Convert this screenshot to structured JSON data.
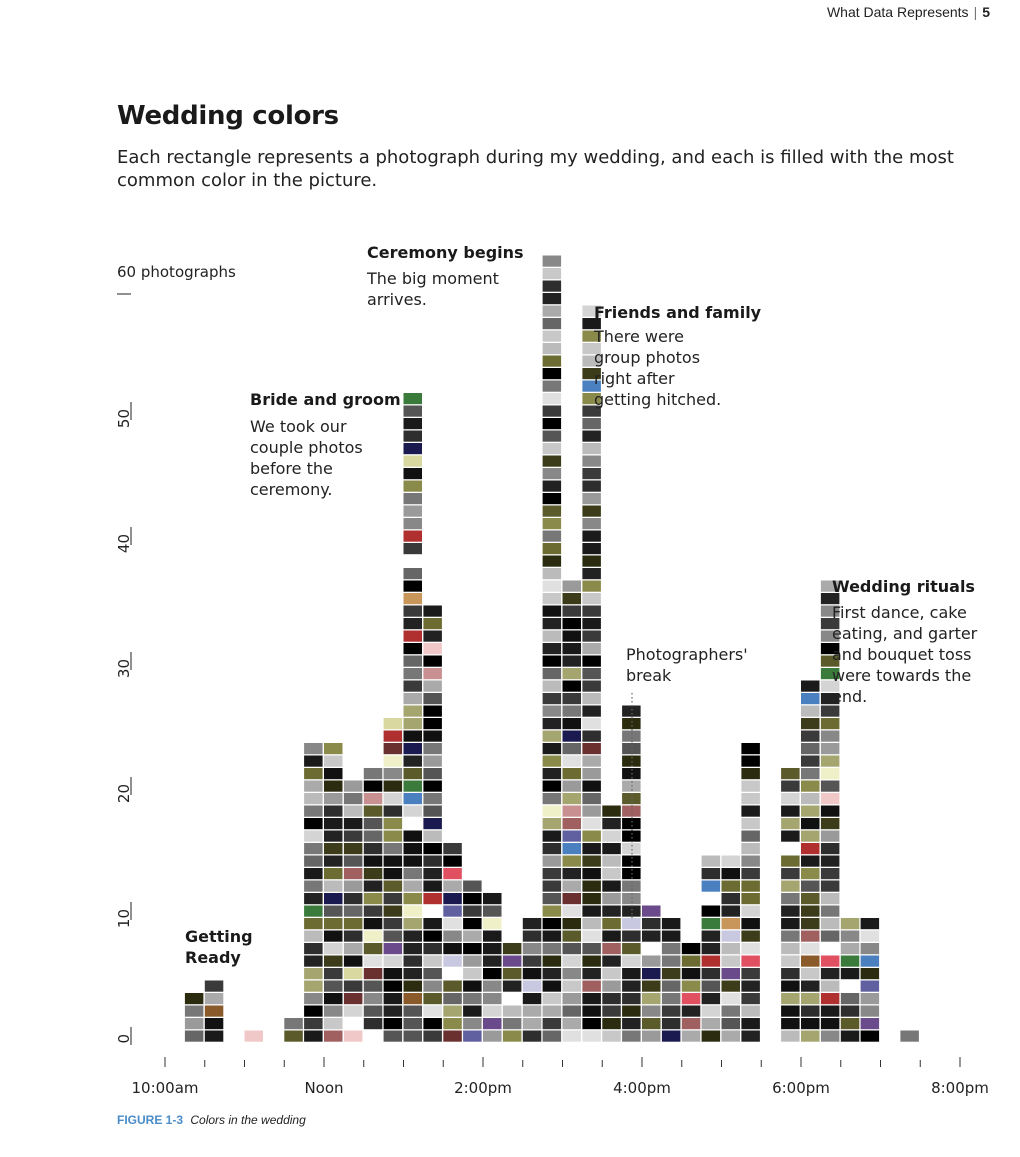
{
  "running_head": {
    "text": "What Data Represents",
    "page": "5"
  },
  "figure": {
    "title": "Wedding colors",
    "subtitle": "Each rectangle represents a photograph during my wedding, and each is filled with the most common color in the picture.",
    "caption_label": "FIGURE 1-3",
    "caption_text": "Colors in the wedding"
  },
  "annotations": {
    "getting_ready": {
      "title": "Getting\nReady"
    },
    "bride_groom": {
      "title": "Bride and groom",
      "text": "We took our\ncouple photos\nbefore the\nceremony."
    },
    "ceremony": {
      "title": "Ceremony begins",
      "text": "The big moment\narrives."
    },
    "friends": {
      "title": "Friends and family",
      "text": "There were\ngroup photos\nright after\ngetting hitched."
    },
    "break": {
      "text": "Photographers'\nbreak"
    },
    "rituals": {
      "title": "Wedding rituals",
      "text": "First dance, cake\neating, and garter\nand bouquet toss\nwere towards the\nend."
    }
  },
  "chart_data": {
    "type": "bar",
    "title": "Wedding colors",
    "xlabel": "",
    "ylabel": "photographs",
    "ylim": [
      0,
      60
    ],
    "yticks": [
      0,
      10,
      20,
      30,
      40,
      50,
      60
    ],
    "ytick_labels": [
      "0",
      "10",
      "20",
      "30",
      "40",
      "50",
      "60 photographs"
    ],
    "xlim_hours": [
      10,
      20
    ],
    "x_tick_labels": [
      {
        "hour": 10,
        "label": "10:00am"
      },
      {
        "hour": 12,
        "label": "Noon"
      },
      {
        "hour": 14,
        "label": "2:00pm"
      },
      {
        "hour": 16,
        "label": "4:00pm"
      },
      {
        "hour": 18,
        "label": "6:00pm"
      },
      {
        "hour": 20,
        "label": "8:00pm"
      }
    ],
    "bin_minutes": 15,
    "bins": [
      {
        "start": "10:15",
        "count": 4
      },
      {
        "start": "10:30",
        "count": 5
      },
      {
        "start": "11:00",
        "count": 1
      },
      {
        "start": "11:30",
        "count": 2
      },
      {
        "start": "11:45",
        "count": 24
      },
      {
        "start": "12:00",
        "count": 24
      },
      {
        "start": "12:15",
        "count": 21
      },
      {
        "start": "12:30",
        "count": 22
      },
      {
        "start": "12:45",
        "count": 26
      },
      {
        "start": "13:00",
        "count": 52
      },
      {
        "start": "13:15",
        "count": 35
      },
      {
        "start": "13:30",
        "count": 16
      },
      {
        "start": "13:45",
        "count": 13
      },
      {
        "start": "14:00",
        "count": 12
      },
      {
        "start": "14:15",
        "count": 8
      },
      {
        "start": "14:30",
        "count": 10
      },
      {
        "start": "14:45",
        "count": 63
      },
      {
        "start": "15:00",
        "count": 37
      },
      {
        "start": "15:15",
        "count": 59
      },
      {
        "start": "15:30",
        "count": 19
      },
      {
        "start": "15:45",
        "count": 27
      },
      {
        "start": "16:00",
        "count": 11
      },
      {
        "start": "16:15",
        "count": 10
      },
      {
        "start": "16:30",
        "count": 8
      },
      {
        "start": "16:45",
        "count": 15
      },
      {
        "start": "17:00",
        "count": 15
      },
      {
        "start": "17:15",
        "count": 24
      },
      {
        "start": "17:45",
        "count": 22
      },
      {
        "start": "18:00",
        "count": 29
      },
      {
        "start": "18:15",
        "count": 37
      },
      {
        "start": "18:30",
        "count": 10
      },
      {
        "start": "18:45",
        "count": 10
      },
      {
        "start": "19:15",
        "count": 1
      }
    ],
    "palette": {
      "dark": [
        "#000000",
        "#111111",
        "#222222",
        "#2e2e2e",
        "#3a3a3a",
        "#1a1a1a"
      ],
      "mid": [
        "#555555",
        "#666666",
        "#777777",
        "#888888",
        "#9a9a9a"
      ],
      "light": [
        "#aaaaaa",
        "#bbbbbb",
        "#c8c8c8",
        "#d4d4d4",
        "#e0e0e0",
        "#ffffff"
      ],
      "olive": [
        "#5a5a2a",
        "#6b6b32",
        "#3c3c1a",
        "#8a8a4a",
        "#a5a570",
        "#2b2b10"
      ],
      "accent": [
        "#8a5a2a",
        "#c8955a",
        "#c89090",
        "#a06060",
        "#c8c8e0",
        "#f0f0c8",
        "#e05060",
        "#6a3030",
        "#3a7a3a",
        "#6060a0",
        "#1a1a50",
        "#6a4a8a",
        "#f0c8c8",
        "#d8d8a0",
        "#4a80c0",
        "#b03030"
      ]
    }
  }
}
